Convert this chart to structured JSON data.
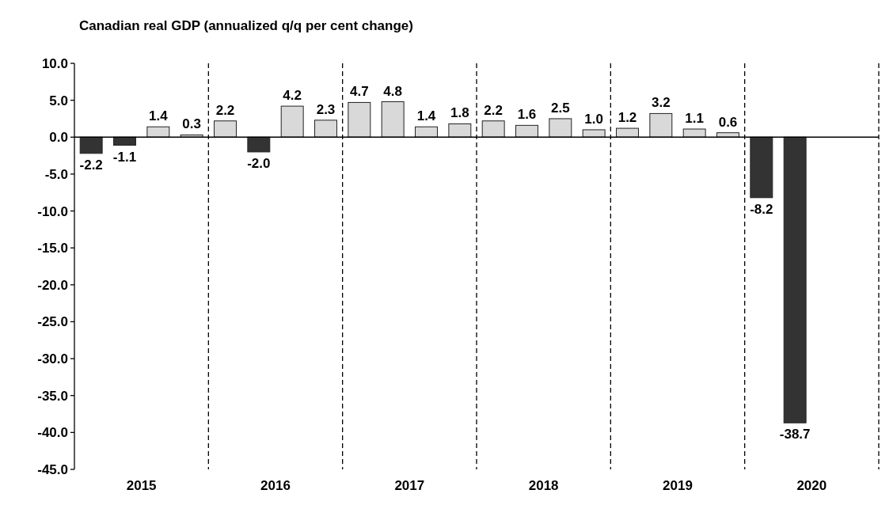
{
  "chart_data": {
    "type": "bar",
    "title": "Canadian real GDP (annualized q/q per cent change)",
    "categories": [
      "2015",
      "2016",
      "2017",
      "2018",
      "2019",
      "2020"
    ],
    "series": [
      {
        "values": [
          -2.2,
          2.2,
          4.7,
          2.2,
          1.2,
          -8.2
        ],
        "colors": [
          "#333333",
          "#d9d9d9",
          "#d9d9d9",
          "#d9d9d9",
          "#d9d9d9",
          "#333333"
        ],
        "value_labels": [
          "-2.2",
          "2.2",
          "4.7",
          "2.2",
          "1.2",
          "-8.2"
        ]
      },
      {
        "values": [
          -1.1,
          -2.0,
          4.8,
          1.6,
          3.2,
          -38.7
        ],
        "colors": [
          "#333333",
          "#333333",
          "#d9d9d9",
          "#d9d9d9",
          "#d9d9d9",
          "#333333"
        ],
        "value_labels": [
          "-1.1",
          "-2.0",
          "4.8",
          "1.6",
          "3.2",
          "-38.7"
        ]
      },
      {
        "values": [
          1.4,
          4.2,
          1.4,
          2.5,
          1.1,
          null
        ],
        "colors": [
          "#d9d9d9",
          "#d9d9d9",
          "#d9d9d9",
          "#d9d9d9",
          "#d9d9d9",
          null
        ],
        "value_labels": [
          "1.4",
          "4.2",
          "1.4",
          "2.5",
          "1.1",
          null
        ]
      },
      {
        "values": [
          0.3,
          2.3,
          1.8,
          1.0,
          0.6,
          null
        ],
        "colors": [
          "#d9d9d9",
          "#d9d9d9",
          "#d9d9d9",
          "#d9d9d9",
          "#d9d9d9",
          null
        ],
        "value_labels": [
          "0.3",
          "2.3",
          "1.8",
          "1.0",
          "0.6",
          null
        ]
      }
    ],
    "ylim": [
      -45,
      10
    ],
    "yticks": [
      {
        "value": 10,
        "label": "10.0"
      },
      {
        "value": 5,
        "label": "5.0"
      },
      {
        "value": 0,
        "label": "0.0"
      },
      {
        "value": -5,
        "label": "-5.0"
      },
      {
        "value": -10,
        "label": "-10.0"
      },
      {
        "value": -15,
        "label": "-15.0"
      },
      {
        "value": -20,
        "label": "-20.0"
      },
      {
        "value": -25,
        "label": "-25.0"
      },
      {
        "value": -30,
        "label": "-30.0"
      },
      {
        "value": -35,
        "label": "-35.0"
      },
      {
        "value": -40,
        "label": "-40.0"
      },
      {
        "value": -45,
        "label": "-45.0"
      }
    ],
    "grid": "x"
  }
}
